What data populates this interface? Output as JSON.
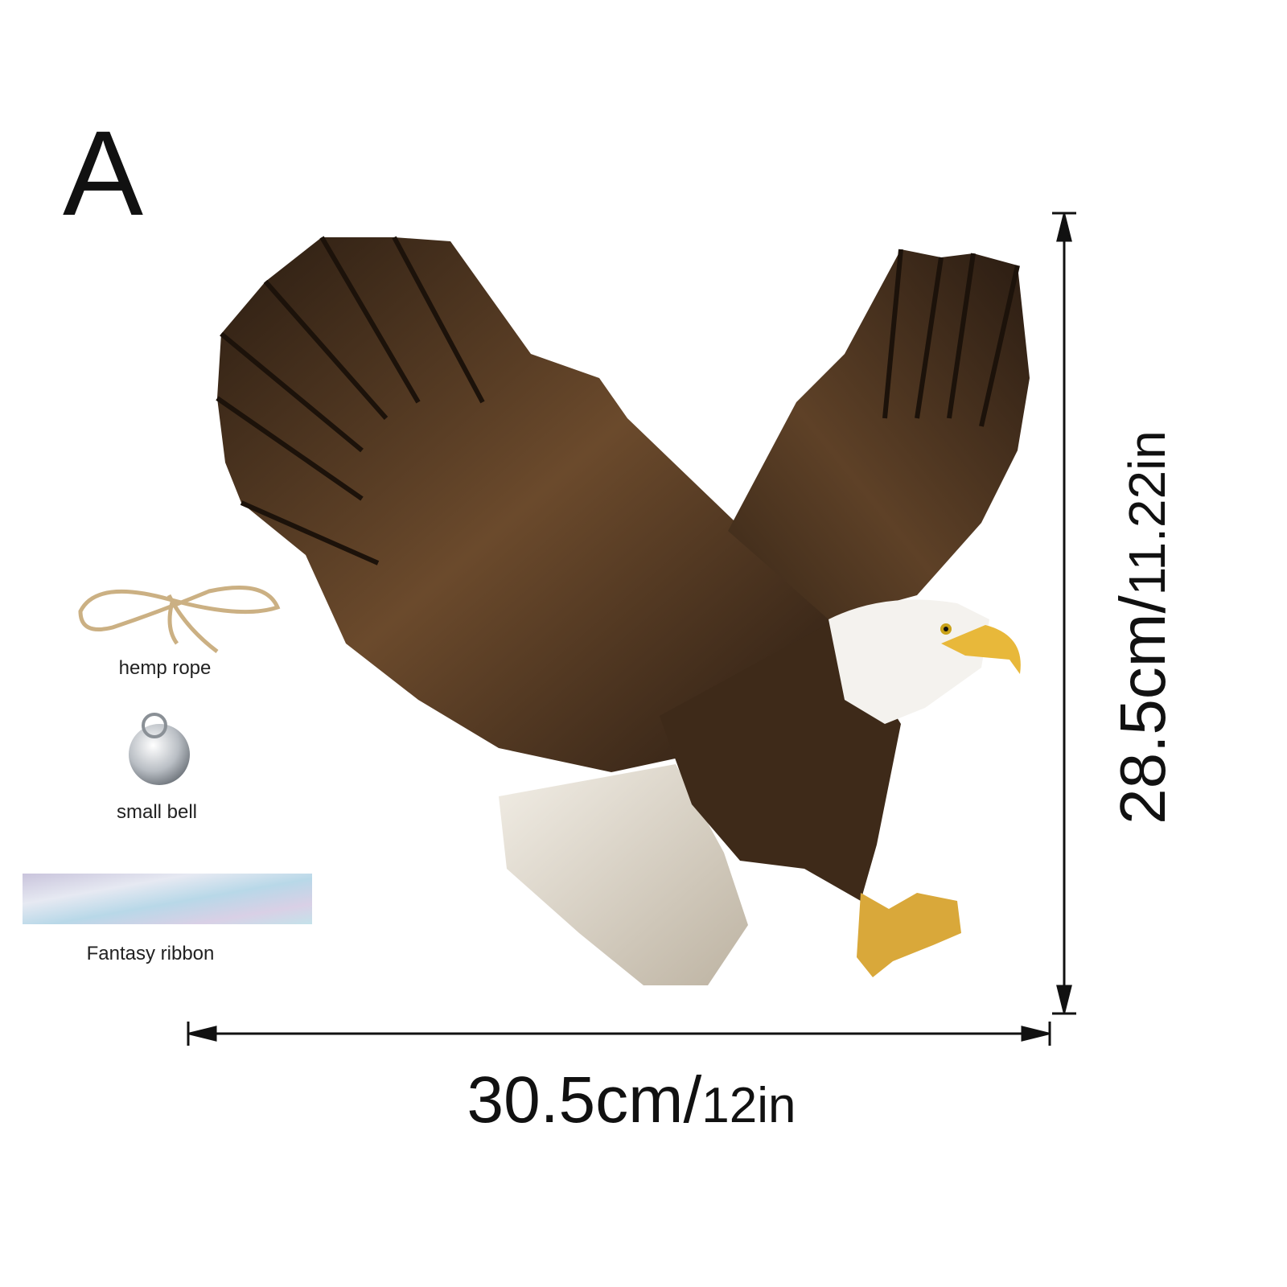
{
  "variant_label": "A",
  "accessories": [
    {
      "label": "hemp rope"
    },
    {
      "label": "small bell"
    },
    {
      "label": "Fantasy ribbon"
    }
  ],
  "dimensions": {
    "width": {
      "metric": "30.5cm/",
      "imperial": "12in"
    },
    "height": {
      "metric": "28.5cm/",
      "imperial": "11.22in"
    }
  }
}
